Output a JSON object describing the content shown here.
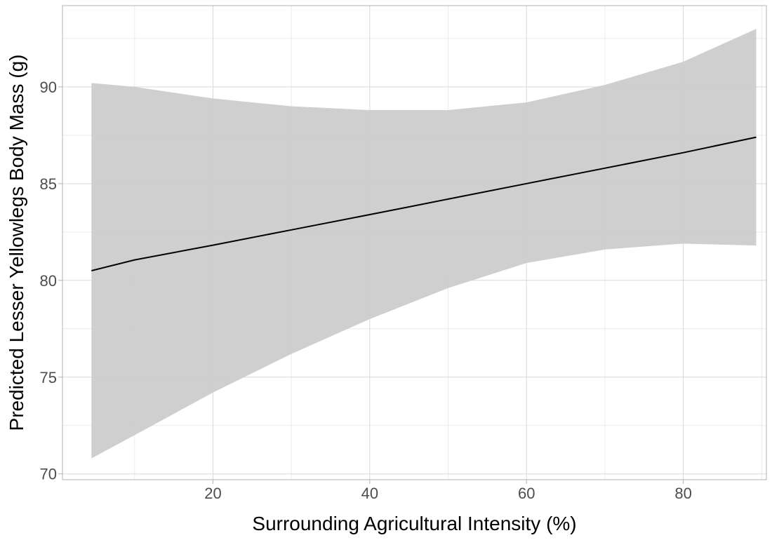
{
  "chart_data": {
    "type": "line",
    "title": "",
    "xlabel": "Surrounding Agricultural Intensity (%)",
    "ylabel": "Predicted Lesser Yellowlegs Body Mass (g)",
    "xlim": [
      0.8,
      90.6
    ],
    "ylim": [
      69.7,
      94.2
    ],
    "x_ticks": [
      20,
      40,
      60,
      80
    ],
    "y_ticks": [
      70,
      75,
      80,
      85,
      90
    ],
    "x_minor_ticks": [
      10,
      30,
      50,
      70,
      90
    ],
    "y_minor_ticks": [
      72.5,
      77.5,
      82.5,
      87.5,
      92.5
    ],
    "grid": true,
    "legend": "none",
    "series": [
      {
        "x": [
          4.5,
          10,
          20,
          30,
          40,
          45,
          50,
          60,
          70,
          80,
          89.3
        ],
        "y": [
          80.5,
          81.06,
          81.82,
          82.61,
          83.4,
          83.8,
          84.2,
          85.0,
          85.8,
          86.6,
          87.4
        ],
        "lower": [
          70.8,
          72.0,
          74.2,
          76.2,
          78.0,
          78.8,
          79.6,
          80.9,
          81.6,
          81.9,
          81.8
        ],
        "upper": [
          90.2,
          90.0,
          89.4,
          89.0,
          88.8,
          88.8,
          88.8,
          89.2,
          90.1,
          91.3,
          93.0
        ]
      }
    ],
    "colors": {
      "line": "#000000",
      "ribbon": "#cbcbcb",
      "grid_major": "#d9d9d9",
      "grid_minor": "#ebebeb",
      "panel_border": "#b3b3b3"
    }
  }
}
